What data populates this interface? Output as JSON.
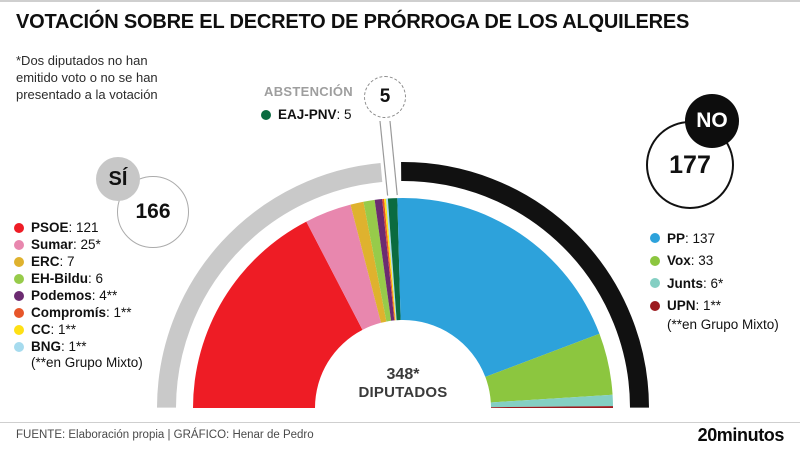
{
  "title": "VOTACIÓN SOBRE EL DECRETO DE PRÓRROGA DE LOS ALQUILERES",
  "note": "*Dos diputados no han\nemitido voto o no se han\npresentado a la votación",
  "abstention": {
    "label": "ABSTENCIÓN",
    "value": "5",
    "party": "EAJ-PNV",
    "party_value_text": ": 5",
    "color": "#0b6b40"
  },
  "yes": {
    "label": "SÍ",
    "total": "166"
  },
  "no": {
    "label": "NO",
    "total": "177"
  },
  "center": {
    "seats": "348*",
    "label": "DIPUTADOS"
  },
  "legend_left": {
    "items": [
      {
        "label": "PSOE",
        "value": "121",
        "color": "#ee1c25"
      },
      {
        "label": "Sumar",
        "value": "25*",
        "color": "#e887ae"
      },
      {
        "label": "ERC",
        "value": "7",
        "color": "#dfb22e"
      },
      {
        "label": "EH-Bildu",
        "value": "6",
        "color": "#97cb4a"
      },
      {
        "label": "Podemos",
        "value": "4**",
        "color": "#6c2b71"
      },
      {
        "label": "Compromís",
        "value": "1**",
        "color": "#e7562a"
      },
      {
        "label": "CC",
        "value": "1**",
        "color": "#fee015"
      },
      {
        "label": "BNG",
        "value": "1**",
        "color": "#a6dbee"
      }
    ],
    "footnote": "(**en Grupo Mixto)"
  },
  "legend_right": {
    "items": [
      {
        "label": "PP",
        "value": "137",
        "color": "#2da2db"
      },
      {
        "label": "Vox",
        "value": "33",
        "color": "#8cc63f"
      },
      {
        "label": "Junts",
        "value": "6*",
        "color": "#84cfc3"
      },
      {
        "label": "UPN",
        "value": "1**",
        "color": "#9b1a1e"
      }
    ],
    "footnote": "(**en Grupo Mixto)"
  },
  "footer": {
    "source": "FUENTE: Elaboración propia  |  GRÁFICO: Henar de Pedro",
    "brand": "20minutos"
  },
  "chart_data": {
    "type": "pie",
    "subtype": "semicircle-parliament",
    "title": "VOTACIÓN SOBRE EL DECRETO DE PRÓRROGA DE LOS ALQUILERES",
    "total_seats": 348,
    "center_label": "348* DIPUTADOS",
    "groups": [
      {
        "name": "SÍ",
        "total": 166,
        "arc_color": "#c9c9c9"
      },
      {
        "name": "ABSTENCIÓN",
        "total": 5,
        "arc_color": null
      },
      {
        "name": "NO",
        "total": 177,
        "arc_color": "#111111"
      }
    ],
    "series": [
      {
        "party": "PSOE",
        "seats": 121,
        "vote": "SÍ",
        "color": "#ee1c25"
      },
      {
        "party": "Sumar",
        "seats": 25,
        "vote": "SÍ",
        "color": "#e887ae"
      },
      {
        "party": "ERC",
        "seats": 7,
        "vote": "SÍ",
        "color": "#dfb22e"
      },
      {
        "party": "EH-Bildu",
        "seats": 6,
        "vote": "SÍ",
        "color": "#97cb4a"
      },
      {
        "party": "Podemos",
        "seats": 4,
        "vote": "SÍ",
        "color": "#6c2b71"
      },
      {
        "party": "Compromís",
        "seats": 1,
        "vote": "SÍ",
        "color": "#e7562a"
      },
      {
        "party": "CC",
        "seats": 1,
        "vote": "SÍ",
        "color": "#fee015"
      },
      {
        "party": "BNG",
        "seats": 1,
        "vote": "SÍ",
        "color": "#a6dbee"
      },
      {
        "party": "EAJ-PNV",
        "seats": 5,
        "vote": "ABSTENCIÓN",
        "color": "#0b6b40"
      },
      {
        "party": "PP",
        "seats": 137,
        "vote": "NO",
        "color": "#2da2db"
      },
      {
        "party": "Vox",
        "seats": 33,
        "vote": "NO",
        "color": "#8cc63f"
      },
      {
        "party": "Junts",
        "seats": 6,
        "vote": "NO",
        "color": "#84cfc3"
      },
      {
        "party": "UPN",
        "seats": 1,
        "vote": "NO",
        "color": "#9b1a1e"
      }
    ]
  }
}
